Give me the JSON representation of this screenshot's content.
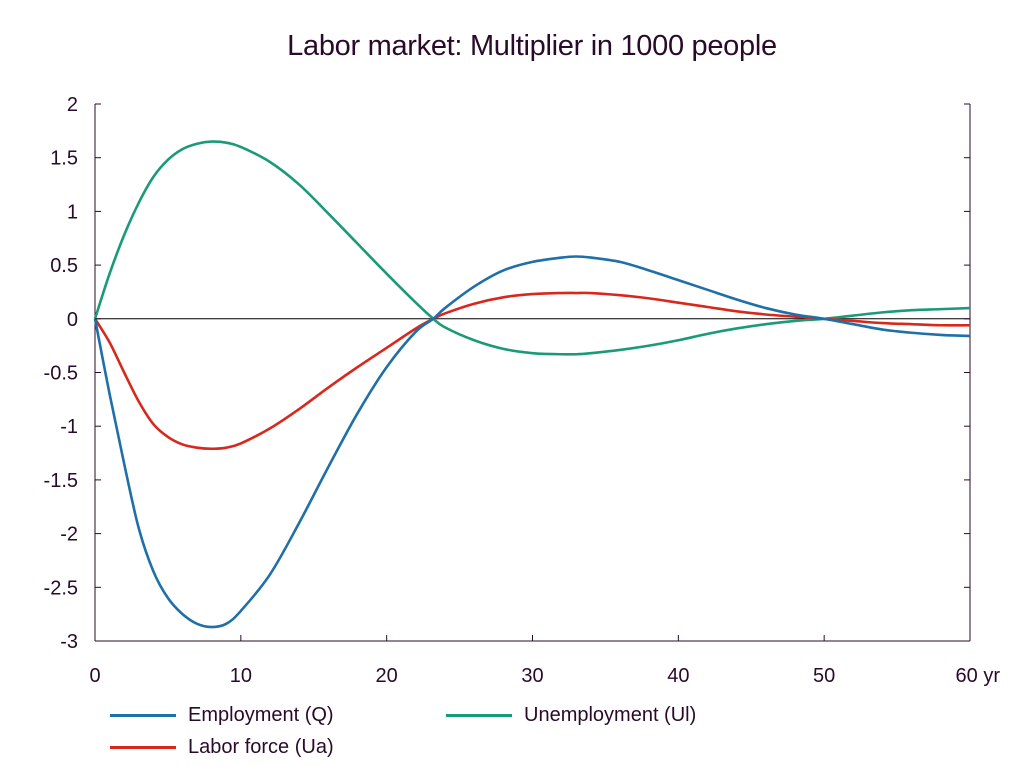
{
  "chart_data": {
    "type": "line",
    "title": "Labor market: Multiplier in 1000 people",
    "xlabel": "",
    "ylabel": "",
    "x_unit": "yr",
    "xlim": [
      0,
      60
    ],
    "ylim": [
      -3,
      2
    ],
    "x_ticks": [
      0,
      10,
      20,
      30,
      40,
      50,
      60
    ],
    "x_tick_labels": [
      "0",
      "10",
      "20",
      "30",
      "40",
      "50",
      "60 yr"
    ],
    "y_ticks": [
      2,
      1.5,
      1,
      0.5,
      0,
      -0.5,
      -1,
      -1.5,
      -2,
      -2.5,
      -3
    ],
    "y_tick_labels": [
      "2",
      "1.5",
      "1",
      "0.5",
      "0",
      "-0.5",
      "-1",
      "-1.5",
      "-2",
      "-2.5",
      "-3"
    ],
    "grid": false,
    "legend_position": "bottom",
    "x": [
      0,
      1,
      2,
      3,
      4,
      5,
      6,
      7,
      8,
      9,
      10,
      12,
      14,
      16,
      18,
      20,
      22,
      23.2,
      24,
      26,
      28,
      30,
      32,
      33,
      34,
      36,
      38,
      40,
      42,
      44,
      46,
      48,
      50,
      52,
      54,
      56,
      58,
      60
    ],
    "series": [
      {
        "name": "Employment (Q)",
        "color": "#1f6fa8",
        "values": [
          0,
          -0.7,
          -1.35,
          -1.95,
          -2.35,
          -2.6,
          -2.75,
          -2.84,
          -2.87,
          -2.84,
          -2.72,
          -2.38,
          -1.9,
          -1.38,
          -0.88,
          -0.45,
          -0.12,
          0,
          0.1,
          0.3,
          0.45,
          0.53,
          0.57,
          0.58,
          0.57,
          0.53,
          0.45,
          0.36,
          0.27,
          0.18,
          0.1,
          0.04,
          0,
          -0.05,
          -0.1,
          -0.13,
          -0.15,
          -0.16
        ]
      },
      {
        "name": "Unemployment (Ul)",
        "color": "#1a9a78",
        "values": [
          0,
          0.42,
          0.78,
          1.08,
          1.32,
          1.48,
          1.58,
          1.63,
          1.65,
          1.64,
          1.6,
          1.46,
          1.25,
          0.98,
          0.7,
          0.42,
          0.15,
          0,
          -0.08,
          -0.2,
          -0.28,
          -0.32,
          -0.33,
          -0.33,
          -0.32,
          -0.29,
          -0.25,
          -0.2,
          -0.14,
          -0.09,
          -0.05,
          -0.02,
          0,
          0.03,
          0.06,
          0.08,
          0.09,
          0.1
        ]
      },
      {
        "name": "Labor force (Ua)",
        "color": "#d8281e",
        "values": [
          0,
          -0.22,
          -0.5,
          -0.77,
          -0.98,
          -1.1,
          -1.17,
          -1.2,
          -1.21,
          -1.2,
          -1.16,
          -1.02,
          -0.84,
          -0.64,
          -0.45,
          -0.27,
          -0.09,
          0,
          0.05,
          0.14,
          0.2,
          0.23,
          0.24,
          0.24,
          0.24,
          0.22,
          0.19,
          0.15,
          0.11,
          0.07,
          0.04,
          0.02,
          0,
          -0.02,
          -0.04,
          -0.05,
          -0.06,
          -0.06
        ]
      }
    ],
    "legend": [
      {
        "name": "Employment (Q)",
        "color": "#1f6fa8"
      },
      {
        "name": "Unemployment (Ul)",
        "color": "#1a9a78"
      },
      {
        "name": "Labor force (Ua)",
        "color": "#d8281e"
      }
    ]
  }
}
